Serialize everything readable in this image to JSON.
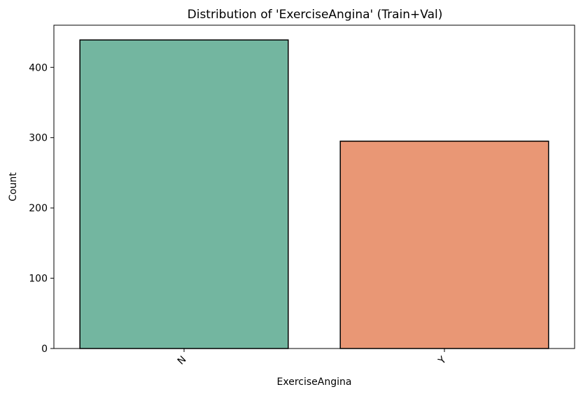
{
  "chart_data": {
    "type": "bar",
    "title": "Distribution of 'ExerciseAngina' (Train+Val)",
    "xlabel": "ExerciseAngina",
    "ylabel": "Count",
    "categories": [
      "N",
      "Y"
    ],
    "values": [
      439,
      295
    ],
    "ylim": [
      0,
      460
    ],
    "yticks": [
      0,
      100,
      200,
      300,
      400
    ],
    "colors": [
      "#73b6a0",
      "#e99775"
    ],
    "edge_color": "#000000",
    "grid": false,
    "legend": "none"
  }
}
